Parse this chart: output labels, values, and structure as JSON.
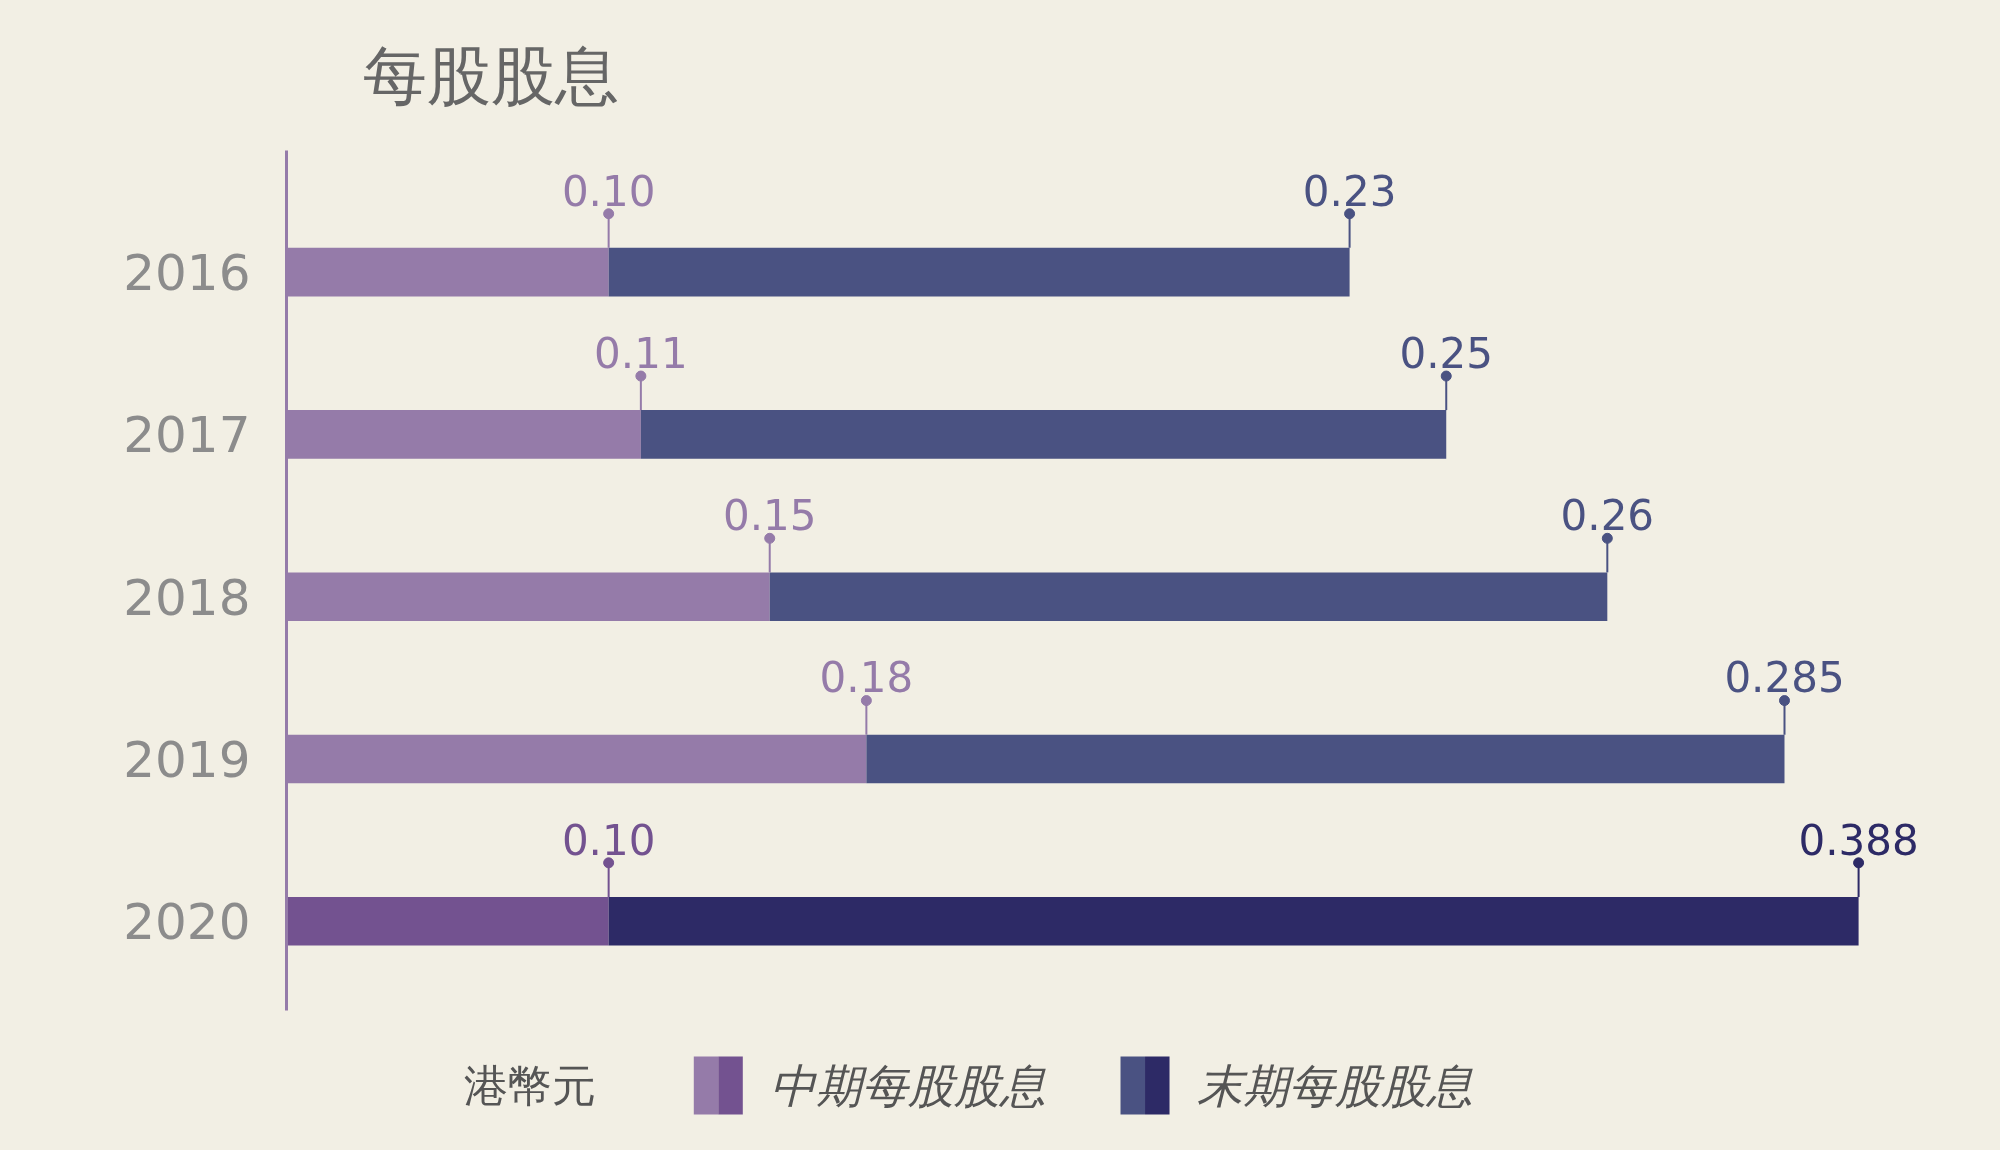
{
  "chart_data": {
    "type": "bar",
    "orientation": "horizontal",
    "stacked": true,
    "title": "每股股息",
    "categories": [
      "2016",
      "2017",
      "2018",
      "2019",
      "2020"
    ],
    "series": [
      {
        "name": "中期每股股息",
        "colors": [
          "#957ba9",
          "#957ba9",
          "#957ba9",
          "#957ba9",
          "#735290"
        ],
        "values": [
          0.1,
          0.11,
          0.15,
          0.18,
          0.1
        ],
        "value_labels": [
          "0.10",
          "0.11",
          "0.15",
          "0.18",
          "0.10"
        ]
      },
      {
        "name": "末期每股股息",
        "colors": [
          "#4a5282",
          "#4a5282",
          "#4a5282",
          "#4a5282",
          "#2d2a66"
        ],
        "values": [
          0.23,
          0.25,
          0.26,
          0.285,
          0.388
        ],
        "value_labels": [
          "0.23",
          "0.25",
          "0.26",
          "0.285",
          "0.388"
        ]
      }
    ],
    "annotations": [
      "港幣元"
    ],
    "legend": "bottom",
    "grid": false,
    "tick_labels": "y"
  }
}
